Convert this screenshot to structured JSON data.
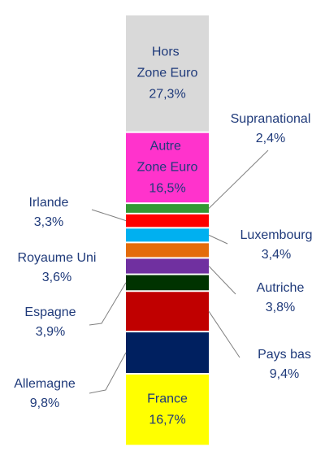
{
  "chart_data": {
    "type": "bar",
    "stacked": true,
    "categories": [
      "France",
      "Allemagne",
      "Pays bas",
      "Espagne",
      "Autriche",
      "Royaume Uni",
      "Luxembourg",
      "Irlande",
      "Supranational",
      "Autre Zone Euro",
      "Hors Zone Euro"
    ],
    "values": [
      16.7,
      9.8,
      9.4,
      3.9,
      3.8,
      3.6,
      3.4,
      3.3,
      2.4,
      16.5,
      27.3
    ],
    "value_labels": [
      "16,7%",
      "9,8%",
      "9,4%",
      "3,9%",
      "3,8%",
      "3,6%",
      "3,4%",
      "3,3%",
      "2,4%",
      "16,5%",
      "27,3%"
    ],
    "colors": [
      "#ffff00",
      "#002060",
      "#c00000",
      "#003300",
      "#7030a0",
      "#e46c0a",
      "#00b0f0",
      "#ff0000",
      "#339933",
      "#ff33cc",
      "#d9d9d9"
    ]
  }
}
